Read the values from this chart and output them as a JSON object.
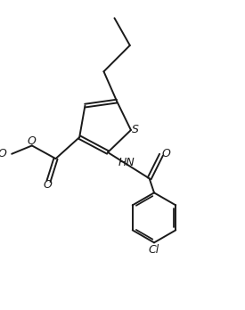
{
  "bg_color": "#ffffff",
  "line_color": "#1a1a1a",
  "line_width": 1.4,
  "figsize": [
    2.75,
    3.48
  ],
  "dpi": 100,
  "xlim": [
    0,
    10
  ],
  "ylim": [
    0,
    13
  ]
}
